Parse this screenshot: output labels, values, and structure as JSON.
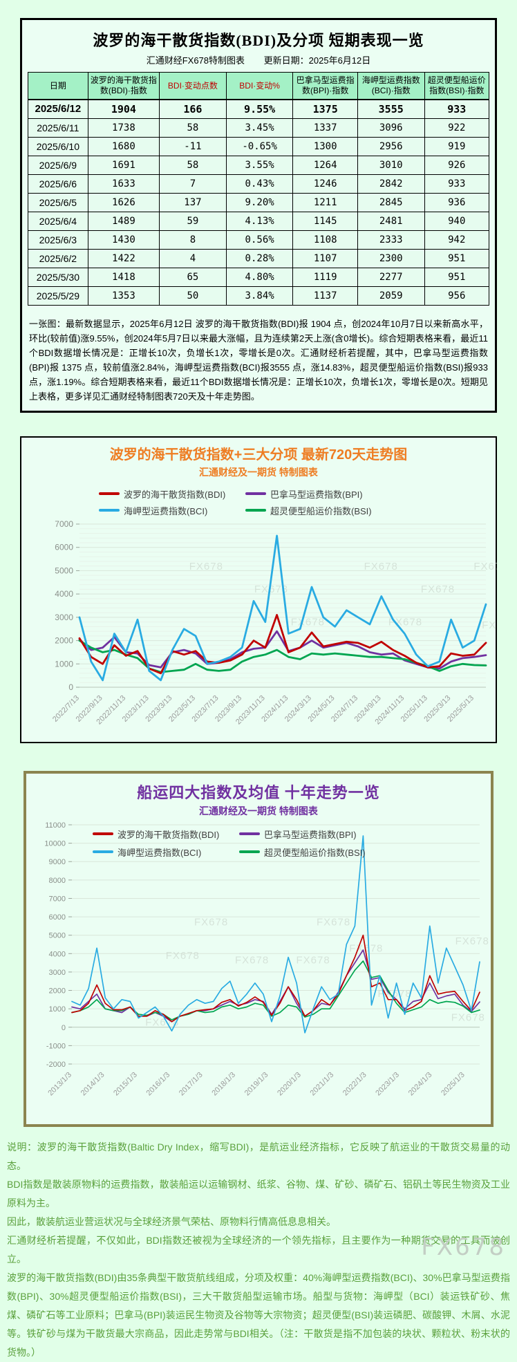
{
  "colors": {
    "page_bg": "#e1ffe8",
    "panel_bg": "#ebfef3",
    "table_header_bg": "#a4f1c6",
    "table_row_bg": "#e6fcef",
    "red_text": "#c00000",
    "orange": "#ee7d23",
    "purple": "#7030a0",
    "khaki_border": "#8b844f",
    "green_text": "#5aa03c",
    "watermark_gray": "#c3cec4"
  },
  "watermark": "FX678",
  "top_panel": {
    "title": "波罗的海干散货指数(BDI)及分项 短期表现一览",
    "subtitle_left": "汇通财经FX678特制图表",
    "subtitle_right": "更新日期：2025年6月12日",
    "table": {
      "headers": [
        "日期",
        "波罗的海干散货指数(BDI)·指数",
        "BDI·变动点数",
        "BDI·变动%",
        "巴拿马型运费指数(BPI)·指数",
        "海岬型运费指数(BCI)·指数",
        "超灵便型船运价指数(BSI)·指数"
      ],
      "header_red_cols": [
        2,
        3
      ],
      "rows": [
        [
          "2025/6/12",
          "1904",
          "166",
          "9.55%",
          "1375",
          "3555",
          "933"
        ],
        [
          "2025/6/11",
          "1738",
          "58",
          "3.45%",
          "1337",
          "3096",
          "922"
        ],
        [
          "2025/6/10",
          "1680",
          "-11",
          "-0.65%",
          "1300",
          "2956",
          "919"
        ],
        [
          "2025/6/9",
          "1691",
          "58",
          "3.55%",
          "1264",
          "3010",
          "926"
        ],
        [
          "2025/6/6",
          "1633",
          "7",
          "0.43%",
          "1246",
          "2842",
          "933"
        ],
        [
          "2025/6/5",
          "1626",
          "137",
          "9.20%",
          "1211",
          "2845",
          "936"
        ],
        [
          "2025/6/4",
          "1489",
          "59",
          "4.13%",
          "1145",
          "2481",
          "940"
        ],
        [
          "2025/6/3",
          "1430",
          "8",
          "0.56%",
          "1108",
          "2333",
          "942"
        ],
        [
          "2025/6/2",
          "1422",
          "4",
          "0.28%",
          "1107",
          "2300",
          "951"
        ],
        [
          "2025/5/30",
          "1418",
          "65",
          "4.80%",
          "1119",
          "2277",
          "951"
        ],
        [
          "2025/5/29",
          "1353",
          "50",
          "3.84%",
          "1137",
          "2059",
          "956"
        ]
      ]
    },
    "summary": "一张图：最新数据显示，2025年6月12日 波罗的海干散货指数(BDI)报 1904 点，创2024年10月7日以来新高水平，环比(较前值)涨9.55%，创2024年5月7日以来最大涨幅，且为连续第2天上涨(含0增长)。综合短期表格来看，最近11个BDI数据增长情况是：正增长10次，负增长1次，零增长是0次。汇通财经析若提醒，其中，巴拿马型运费指数(BPI)报 1375 点，较前值涨2.84%，海岬型运费指数(BCI)报3555 点，涨14.83%，超灵便型船运价指数(BSI)报933 点，涨1.19%。综合短期表格来看，最近11个BDI数据增长情况是：正增长10次，负增长1次，零增长是0次。短期见上表格，更多详见汇通财经特制图表720天及十年走势图。"
  },
  "chart_data": [
    {
      "type": "line",
      "title": "波罗的海干散货指数+三大分项  最新720天走势图",
      "subtitle": "汇通财经及一期货  特制图表",
      "ylim": [
        0,
        7000
      ],
      "yticks": [
        0,
        1000,
        2000,
        3000,
        4000,
        5000,
        6000,
        7000
      ],
      "grid": true,
      "legend_position": "top",
      "xlabels": [
        "2022/7/13",
        "2022/9/13",
        "2022/11/13",
        "2023/1/13",
        "2023/3/13",
        "2023/5/13",
        "2023/7/13",
        "2023/9/13",
        "2023/11/13",
        "2024/1/13",
        "2024/3/13",
        "2024/5/13",
        "2024/7/13",
        "2024/9/13",
        "2024/11/13",
        "2025/1/13",
        "2025/3/13",
        "2025/5/13"
      ],
      "series": [
        {
          "name": "波罗的海干散货指数(BDI)",
          "color": "#c00000",
          "values": [
            2100,
            1300,
            1000,
            1800,
            1350,
            1550,
            800,
            600,
            1550,
            1400,
            1550,
            1100,
            1050,
            1150,
            1400,
            2000,
            1700,
            3100,
            1500,
            1700,
            2350,
            1750,
            1850,
            1950,
            1900,
            1700,
            1950,
            1600,
            1350,
            1050,
            850,
            900,
            1450,
            1350,
            1400,
            1904
          ]
        },
        {
          "name": "巴拿马型运费指数(BPI)",
          "color": "#7030a0",
          "values": [
            2050,
            1600,
            1700,
            2150,
            1500,
            1450,
            950,
            850,
            1500,
            1600,
            1450,
            1000,
            1050,
            1200,
            1500,
            1650,
            1700,
            2400,
            1550,
            1700,
            2000,
            1700,
            1800,
            1900,
            1750,
            1500,
            1400,
            1450,
            1150,
            1000,
            850,
            800,
            1100,
            1250,
            1300,
            1375
          ]
        },
        {
          "name": "海岬型运费指数(BCI)",
          "color": "#29abe2",
          "values": [
            3000,
            1100,
            300,
            2300,
            1500,
            2900,
            700,
            300,
            1600,
            2500,
            2200,
            1000,
            1100,
            1300,
            1700,
            3700,
            2800,
            6500,
            2300,
            2500,
            4300,
            3000,
            2600,
            3300,
            3000,
            2700,
            3900,
            2900,
            2300,
            1400,
            900,
            1100,
            2900,
            1700,
            2000,
            3555
          ]
        },
        {
          "name": "超灵便型船运价指数(BSI)",
          "color": "#00a550",
          "values": [
            2000,
            1700,
            1500,
            1600,
            1400,
            1250,
            800,
            650,
            700,
            750,
            1000,
            750,
            700,
            750,
            1100,
            1300,
            1400,
            1600,
            1300,
            1200,
            1450,
            1400,
            1450,
            1400,
            1350,
            1300,
            1300,
            1250,
            1200,
            1050,
            900,
            700,
            900,
            1000,
            950,
            933
          ]
        }
      ]
    },
    {
      "type": "line",
      "title": "船运四大指数及均值 十年走势一览",
      "subtitle": "汇通财经及一期货 特制图表",
      "ylim": [
        -2000,
        11000
      ],
      "yticks": [
        -2000,
        -1000,
        0,
        1000,
        2000,
        3000,
        4000,
        5000,
        6000,
        7000,
        8000,
        9000,
        10000,
        11000
      ],
      "grid": true,
      "legend_position": "top-left-inside",
      "xlabels": [
        "2013/1/3",
        "2014/1/3",
        "2015/1/3",
        "2016/1/3",
        "2017/1/3",
        "2018/1/3",
        "2019/1/3",
        "2020/1/3",
        "2021/1/3",
        "2022/1/3",
        "2023/1/3",
        "2024/1/3",
        "2025/1/3"
      ],
      "series": [
        {
          "name": "波罗的海干散货指数(BDI)",
          "color": "#c00000",
          "values": [
            800,
            900,
            1300,
            2300,
            1300,
            950,
            950,
            1100,
            600,
            600,
            900,
            700,
            300,
            600,
            750,
            900,
            950,
            1000,
            1350,
            1500,
            1150,
            1350,
            1650,
            1350,
            650,
            1300,
            2200,
            1500,
            600,
            900,
            1500,
            1200,
            1800,
            2800,
            3800,
            5000,
            2200,
            2400,
            1500,
            1500,
            900,
            1100,
            1400,
            2800,
            1800,
            1900,
            1950,
            1400,
            900,
            1904
          ]
        },
        {
          "name": "巴拿马型运费指数(BPI)",
          "color": "#7030a0",
          "values": [
            1100,
            1000,
            1400,
            1800,
            1000,
            900,
            800,
            1100,
            600,
            600,
            800,
            600,
            300,
            600,
            700,
            900,
            900,
            1000,
            1200,
            1400,
            1200,
            1300,
            1500,
            1400,
            700,
            1400,
            2200,
            1300,
            600,
            900,
            1300,
            1200,
            1900,
            2800,
            3500,
            4200,
            2600,
            2700,
            1900,
            1500,
            1000,
            1400,
            1500,
            2400,
            1550,
            1700,
            1800,
            1200,
            850,
            1375
          ]
        },
        {
          "name": "海岬型运费指数(BCI)",
          "color": "#29abe2",
          "values": [
            1400,
            1200,
            2100,
            4300,
            1600,
            1000,
            1500,
            1400,
            500,
            800,
            1100,
            600,
            -200,
            700,
            1200,
            1500,
            1300,
            1400,
            2100,
            2500,
            1300,
            1800,
            2400,
            1800,
            300,
            1700,
            3800,
            2400,
            -300,
            1000,
            2200,
            1500,
            1800,
            4500,
            5500,
            10400,
            1200,
            2800,
            500,
            2400,
            700,
            2400,
            1600,
            5500,
            2400,
            4300,
            3300,
            2300,
            900,
            3555
          ]
        },
        {
          "name": "超灵便型船运价指数(BSI)",
          "color": "#00a550",
          "values": [
            800,
            900,
            1100,
            1500,
            1000,
            900,
            900,
            1100,
            700,
            650,
            800,
            700,
            400,
            600,
            700,
            900,
            800,
            850,
            1100,
            1200,
            1000,
            1100,
            1300,
            1200,
            600,
            800,
            1200,
            1100,
            550,
            700,
            1000,
            1000,
            1700,
            2400,
            3100,
            3600,
            2700,
            2800,
            2000,
            1300,
            800,
            950,
            1100,
            1500,
            1300,
            1400,
            1350,
            1150,
            800,
            933
          ]
        }
      ]
    }
  ],
  "footnote": {
    "lines": [
      "说明：波罗的海干散货指数(Baltic Dry Index，缩写BDI)，是航运业经济指标，它反映了航运业的干散货交易量的动态。",
      "BDI指数是散装原物料的运费指数，散装船运以运输钢材、纸浆、谷物、煤、矿砂、磷矿石、铝矾土等民生物资及工业原料为主。",
      "因此，散装航运业营运状况与全球经济景气荣枯、原物料行情高低息息相关。",
      "汇通财经析若提醒，不仅如此，BDI指数还被视为全球经济的一个领先指标，且主要作为一种期货交易的工具而被创立。",
      "波罗的海干散货指数(BDI)由35条典型干散货航线组成，分项及权重：40%海岬型运费指数(BCI)、30%巴拿马型运费指数(BPI)、30%超灵便型船运价指数(BSI)，三大干散货船型运输市场。船型与货物：海岬型（BCI）装运铁矿砂、焦煤、磷矿石等工业原料；巴拿马(BPI)装运民生物资及谷物等大宗物资；超灵便型(BSI)装运磷肥、碳酸钾、木屑、水泥等。铁矿砂与煤为干散货最大宗商品，因此走势常与BDI相关。（注：干散货是指不加包装的块状、颗粒状、粉末状的货物。）"
    ]
  }
}
